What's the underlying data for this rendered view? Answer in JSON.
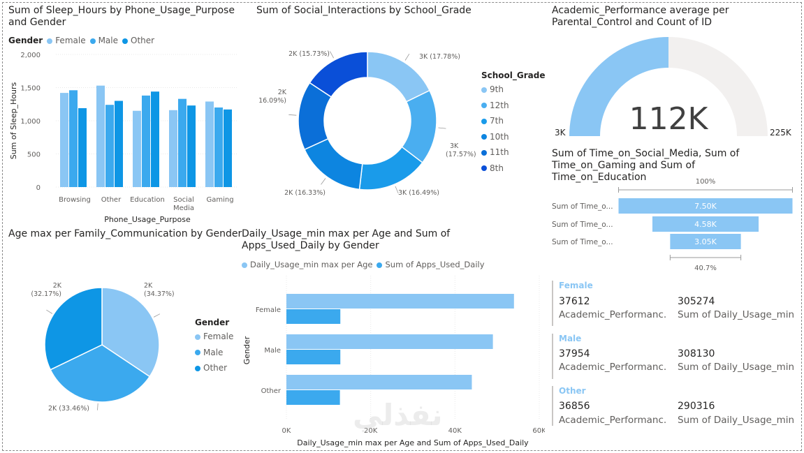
{
  "colors": {
    "female": "#8ac6f4",
    "male": "#3ba9ee",
    "other": "#0e96e5",
    "grade_9th": "#8ac6f4",
    "grade_12th": "#4aaef0",
    "grade_7th": "#1a9bea",
    "grade_10th": "#0d85e0",
    "grade_11th": "#0b6fd8",
    "grade_8th": "#0a4fd8",
    "gauge_bg": "#f2f0ef",
    "funnel": "#8ac6f4"
  },
  "sleep_chart": {
    "title": "Sum of Sleep_Hours by Phone_Usage_Purpose and Gender",
    "legend_title": "Gender",
    "legend": [
      "Female",
      "Male",
      "Other"
    ],
    "ylabel": "Sum of Sleep_Hours",
    "xlabel": "Phone_Usage_Purpose",
    "yticks": [
      "2,000",
      "1,500",
      "1,000",
      "500",
      "0"
    ],
    "categories": [
      "Browsing",
      "Other",
      "Education",
      "Social Media",
      "Gaming"
    ],
    "category_lines": [
      [
        "Browsing"
      ],
      [
        "Other"
      ],
      [
        "Education"
      ],
      [
        "Social",
        "Media"
      ],
      [
        "Gaming"
      ]
    ]
  },
  "social_chart": {
    "title": "Sum of Social_Interactions by School_Grade",
    "legend_title": "School_Grade",
    "legend": [
      "9th",
      "12th",
      "7th",
      "10th",
      "11th",
      "8th"
    ],
    "labels": [
      "3K (17.78%)",
      "3K (17.57%)",
      "3K (16.49%)",
      "2K (16.33%)",
      "2K (16.09%)",
      "2K (15.73%)"
    ]
  },
  "gauge": {
    "title": "Academic_Performance average per Parental_Control and Count of ID",
    "value_label": "112K",
    "min_label": "3K",
    "max_label": "225K"
  },
  "funnel": {
    "title": "Sum of Time_on_Social_Media, Sum of Time_on_Gaming and Sum of Time_on_Education",
    "top_pct": "100%",
    "bottom_pct": "40.7%",
    "rows": [
      {
        "label": "Sum of Time_o...",
        "value": "7.50K"
      },
      {
        "label": "Sum of Time_o...",
        "value": "4.58K"
      },
      {
        "label": "Sum of Time_o...",
        "value": "3.05K"
      }
    ]
  },
  "age_pie": {
    "title": "Age max per Family_Communication by Gender",
    "legend_title": "Gender",
    "legend": [
      "Female",
      "Male",
      "Other"
    ],
    "labels": [
      "2K (34.37%)",
      "2K (33.46%)",
      "2K (32.17%)"
    ]
  },
  "usage_chart": {
    "title": "Daily_Usage_min max per Age and Sum of Apps_Used_Daily by Gender",
    "legend": [
      "Daily_Usage_min max per Age",
      "Sum of Apps_Used_Daily"
    ],
    "ylabel": "Gender",
    "xlabel": "Daily_Usage_min max per Age and Sum of Apps_Used_Daily",
    "xticks": [
      "0K",
      "20K",
      "40K",
      "60K"
    ]
  },
  "cards": [
    {
      "group": "Female",
      "perf_value": "37612",
      "perf_label": "Academic_Performanc...",
      "usage_value": "305274",
      "usage_label": "Sum of Daily_Usage_min"
    },
    {
      "group": "Male",
      "perf_value": "37954",
      "perf_label": "Academic_Performanc...",
      "usage_value": "308130",
      "usage_label": "Sum of Daily_Usage_min"
    },
    {
      "group": "Other",
      "perf_value": "36856",
      "perf_label": "Academic_Performanc...",
      "usage_value": "290316",
      "usage_label": "Sum of Daily_Usage_min"
    }
  ],
  "watermark": "نفذلي",
  "chart_data": [
    {
      "type": "bar",
      "title": "Sum of Sleep_Hours by Phone_Usage_Purpose and Gender",
      "xlabel": "Phone_Usage_Purpose",
      "ylabel": "Sum of Sleep_Hours",
      "ylim": [
        0,
        2000
      ],
      "categories": [
        "Browsing",
        "Other",
        "Education",
        "Social Media",
        "Gaming"
      ],
      "series": [
        {
          "name": "Female",
          "values": [
            1420,
            1530,
            1150,
            1160,
            1290
          ]
        },
        {
          "name": "Male",
          "values": [
            1460,
            1240,
            1380,
            1330,
            1200
          ]
        },
        {
          "name": "Other",
          "values": [
            1190,
            1300,
            1440,
            1230,
            1170
          ]
        }
      ],
      "legend_position": "top-left",
      "grid": true
    },
    {
      "type": "pie",
      "subtype": "donut",
      "title": "Sum of Social_Interactions by School_Grade",
      "categories": [
        "9th",
        "12th",
        "7th",
        "10th",
        "11th",
        "8th"
      ],
      "values": [
        17.78,
        17.57,
        16.49,
        16.33,
        16.09,
        15.73
      ],
      "legend_position": "right"
    },
    {
      "type": "pie",
      "title": "Age max per Family_Communication by Gender",
      "categories": [
        "Female",
        "Male",
        "Other"
      ],
      "values": [
        34.37,
        33.46,
        32.17
      ],
      "legend_position": "right"
    },
    {
      "type": "bar",
      "orientation": "horizontal",
      "title": "Daily_Usage_min max per Age and Sum of Apps_Used_Daily by Gender",
      "categories": [
        "Female",
        "Male",
        "Other"
      ],
      "series": [
        {
          "name": "Daily_Usage_min max per Age",
          "values": [
            54000,
            49000,
            44000
          ]
        },
        {
          "name": "Sum of Apps_Used_Daily",
          "values": [
            12800,
            12800,
            12700
          ]
        }
      ],
      "xlim": [
        0,
        60000
      ],
      "legend_position": "top-left"
    },
    {
      "type": "gauge",
      "title": "Academic_Performance average per Parental_Control and Count of ID",
      "value": 112000,
      "min": 3000,
      "max": 225000,
      "fill_fraction": 0.5
    },
    {
      "type": "funnel",
      "title": "Sum of Time_on_Social_Media, Sum of Time_on_Gaming and Sum of Time_on_Education",
      "values": [
        7500,
        4580,
        3050
      ]
    }
  ]
}
